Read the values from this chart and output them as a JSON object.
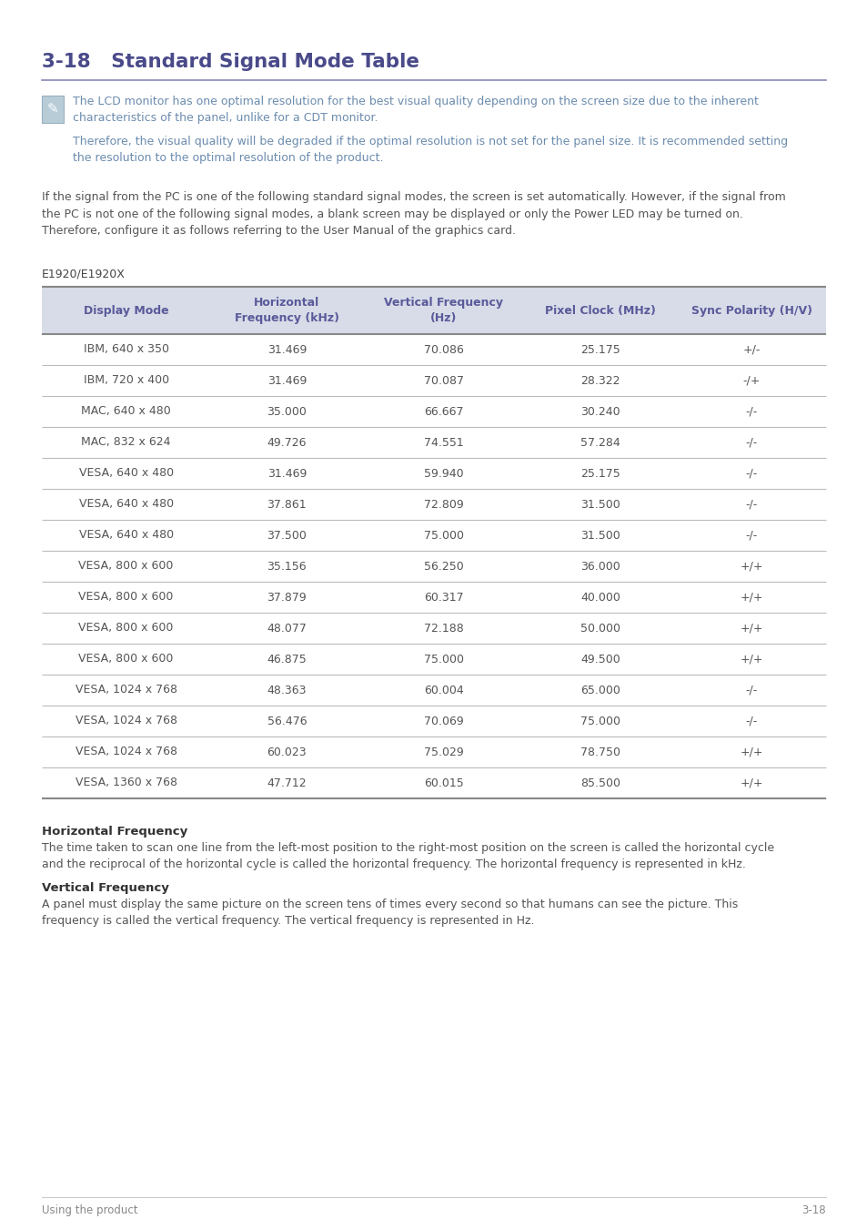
{
  "title": "3-18   Standard Signal Mode Table",
  "title_color": "#4a4a8a",
  "note_text1": "The LCD monitor has one optimal resolution for the best visual quality depending on the screen size due to the inherent\ncharacteristics of the panel, unlike for a CDT monitor.",
  "note_text2": "Therefore, the visual quality will be degraded if the optimal resolution is not set for the panel size. It is recommended setting\nthe resolution to the optimal resolution of the product.",
  "note_color": "#6b8cae",
  "body_text": "If the signal from the PC is one of the following standard signal modes, the screen is set automatically. However, if the signal from\nthe PC is not one of the following signal modes, a blank screen may be displayed or only the Power LED may be turned on.\nTherefore, configure it as follows referring to the User Manual of the graphics card.",
  "body_text_color": "#555555",
  "section_label": "E1920/E1920X",
  "section_label_color": "#444444",
  "table_header": [
    "Display Mode",
    "Horizontal\nFrequency (kHz)",
    "Vertical Frequency\n(Hz)",
    "Pixel Clock (MHz)",
    "Sync Polarity (H/V)"
  ],
  "header_color": "#5a5a9a",
  "header_bg": "#d8dce8",
  "table_data": [
    [
      "IBM, 640 x 350",
      "31.469",
      "70.086",
      "25.175",
      "+/-"
    ],
    [
      "IBM, 720 x 400",
      "31.469",
      "70.087",
      "28.322",
      "-/+"
    ],
    [
      "MAC, 640 x 480",
      "35.000",
      "66.667",
      "30.240",
      "-/-"
    ],
    [
      "MAC, 832 x 624",
      "49.726",
      "74.551",
      "57.284",
      "-/-"
    ],
    [
      "VESA, 640 x 480",
      "31.469",
      "59.940",
      "25.175",
      "-/-"
    ],
    [
      "VESA, 640 x 480",
      "37.861",
      "72.809",
      "31.500",
      "-/-"
    ],
    [
      "VESA, 640 x 480",
      "37.500",
      "75.000",
      "31.500",
      "-/-"
    ],
    [
      "VESA, 800 x 600",
      "35.156",
      "56.250",
      "36.000",
      "+/+"
    ],
    [
      "VESA, 800 x 600",
      "37.879",
      "60.317",
      "40.000",
      "+/+"
    ],
    [
      "VESA, 800 x 600",
      "48.077",
      "72.188",
      "50.000",
      "+/+"
    ],
    [
      "VESA, 800 x 600",
      "46.875",
      "75.000",
      "49.500",
      "+/+"
    ],
    [
      "VESA, 1024 x 768",
      "48.363",
      "60.004",
      "65.000",
      "-/-"
    ],
    [
      "VESA, 1024 x 768",
      "56.476",
      "70.069",
      "75.000",
      "-/-"
    ],
    [
      "VESA, 1024 x 768",
      "60.023",
      "75.029",
      "78.750",
      "+/+"
    ],
    [
      "VESA, 1360 x 768",
      "47.712",
      "60.015",
      "85.500",
      "+/+"
    ]
  ],
  "row_text_color": "#555555",
  "table_line_color": "#bbbbbb",
  "table_outer_color": "#888888",
  "hfreq_title": "Horizontal Frequency",
  "hfreq_body": "The time taken to scan one line from the left-most position to the right-most position on the screen is called the horizontal cycle\nand the reciprocal of the horizontal cycle is called the horizontal frequency. The horizontal frequency is represented in kHz.",
  "vfreq_title": "Vertical Frequency",
  "vfreq_body": "A panel must display the same picture on the screen tens of times every second so that humans can see the picture. This\nfrequency is called the vertical frequency. The vertical frequency is represented in Hz.",
  "footer_left": "Using the product",
  "footer_right": "3-18",
  "footer_color": "#888888",
  "bg_color": "#ffffff",
  "icon_bg": "#b8ccd8",
  "icon_border": "#9ab0c0",
  "line_color": "#8888bb"
}
